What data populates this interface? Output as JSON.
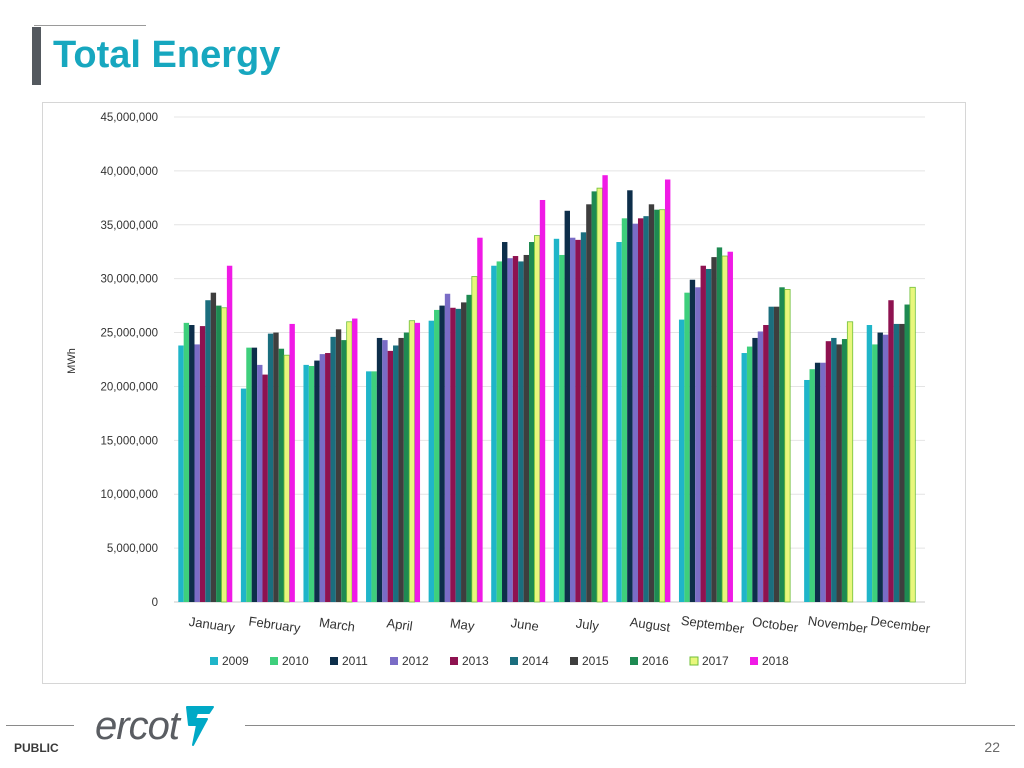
{
  "slide": {
    "title": "Total Energy",
    "footer_label": "PUBLIC",
    "page_number": "22",
    "logo_text": "ercot"
  },
  "colors": {
    "title": "#17a7bf",
    "title_bar": "#54595f",
    "logo": "#5a5d62",
    "logo_mark": "#00a9c6"
  },
  "chart_data": {
    "type": "bar",
    "title": "",
    "xlabel": "",
    "ylabel": "MWh",
    "ylim": [
      0,
      45000000
    ],
    "ytick_labels": [
      "0",
      "5,000,000",
      "10,000,000",
      "15,000,000",
      "20,000,000",
      "25,000,000",
      "30,000,000",
      "35,000,000",
      "40,000,000",
      "45,000,000"
    ],
    "ytick_values": [
      0,
      5000000,
      10000000,
      15000000,
      20000000,
      25000000,
      30000000,
      35000000,
      40000000,
      45000000
    ],
    "grid": true,
    "legend_position": "bottom",
    "categories": [
      "January",
      "February",
      "March",
      "April",
      "May",
      "June",
      "July",
      "August",
      "September",
      "October",
      "November",
      "December"
    ],
    "series": [
      {
        "name": "2009",
        "color": "#1fb5c9",
        "values": [
          23800000,
          19800000,
          22000000,
          21400000,
          26100000,
          31200000,
          33700000,
          33400000,
          26200000,
          23100000,
          20600000,
          25700000
        ]
      },
      {
        "name": "2010",
        "color": "#3ecf7c",
        "values": [
          25900000,
          23600000,
          21900000,
          21400000,
          27100000,
          31600000,
          32200000,
          35600000,
          28700000,
          23700000,
          21600000,
          23900000
        ]
      },
      {
        "name": "2011",
        "color": "#0d2e4a",
        "values": [
          25700000,
          23600000,
          22400000,
          24500000,
          27500000,
          33400000,
          36300000,
          38200000,
          29900000,
          24500000,
          22200000,
          25000000
        ]
      },
      {
        "name": "2012",
        "color": "#7a6cc6",
        "values": [
          23900000,
          22000000,
          23000000,
          24300000,
          28600000,
          31900000,
          33800000,
          35100000,
          29200000,
          25100000,
          22200000,
          24800000
        ]
      },
      {
        "name": "2013",
        "color": "#8e1250",
        "values": [
          25600000,
          21100000,
          23100000,
          23300000,
          27300000,
          32100000,
          33600000,
          35600000,
          31200000,
          25700000,
          24200000,
          28000000
        ]
      },
      {
        "name": "2014",
        "color": "#1b6e7e",
        "values": [
          28000000,
          24900000,
          24600000,
          23800000,
          27200000,
          31600000,
          34300000,
          35800000,
          30900000,
          27400000,
          24500000,
          25800000
        ]
      },
      {
        "name": "2015",
        "color": "#3e3e3e",
        "values": [
          28700000,
          25000000,
          25300000,
          24500000,
          27800000,
          32200000,
          36900000,
          36900000,
          32000000,
          27400000,
          23900000,
          25800000
        ]
      },
      {
        "name": "2016",
        "color": "#1e8a52",
        "values": [
          27500000,
          23500000,
          24300000,
          25000000,
          28500000,
          33400000,
          38100000,
          36400000,
          32900000,
          29200000,
          24400000,
          27600000
        ]
      },
      {
        "name": "2017",
        "color": "#e9f77c",
        "values": [
          27300000,
          22900000,
          26000000,
          26100000,
          30200000,
          34000000,
          38400000,
          36400000,
          32100000,
          29000000,
          26000000,
          29200000
        ]
      },
      {
        "name": "2018",
        "color": "#f01ae6",
        "values": [
          31200000,
          25800000,
          26300000,
          25900000,
          33800000,
          37300000,
          39600000,
          39200000,
          32500000,
          0,
          0,
          0
        ]
      }
    ]
  }
}
